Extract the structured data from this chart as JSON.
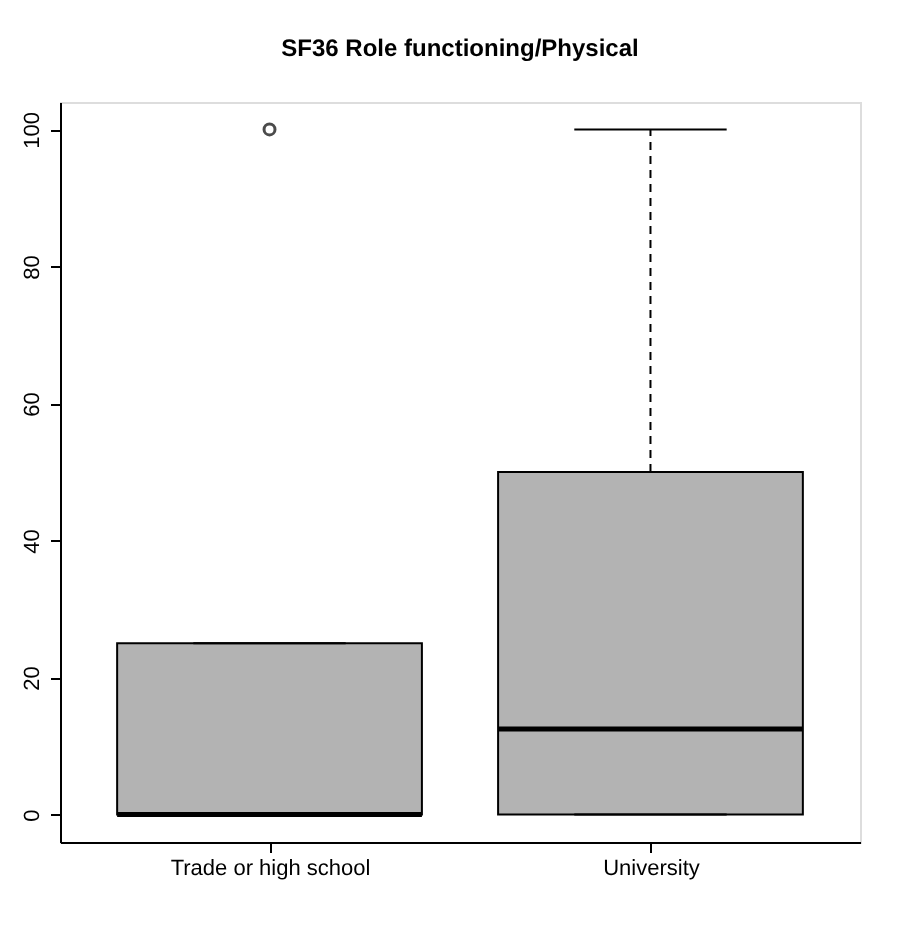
{
  "chart_data": {
    "type": "box",
    "title": "SF36 Role functioning/Physical",
    "categories": [
      "Trade or high school",
      "University"
    ],
    "boxes": [
      {
        "low": 0,
        "q1": 0,
        "median": 0,
        "q3": 25,
        "high": 25,
        "outliers": [
          100
        ]
      },
      {
        "low": 0,
        "q1": 0,
        "median": 12.5,
        "q3": 50,
        "high": 100
      }
    ],
    "color": "#b3b3b3",
    "ylim": [
      -4,
      104
    ],
    "yticks": [
      0,
      20,
      40,
      60,
      80,
      100
    ],
    "grid": false
  }
}
